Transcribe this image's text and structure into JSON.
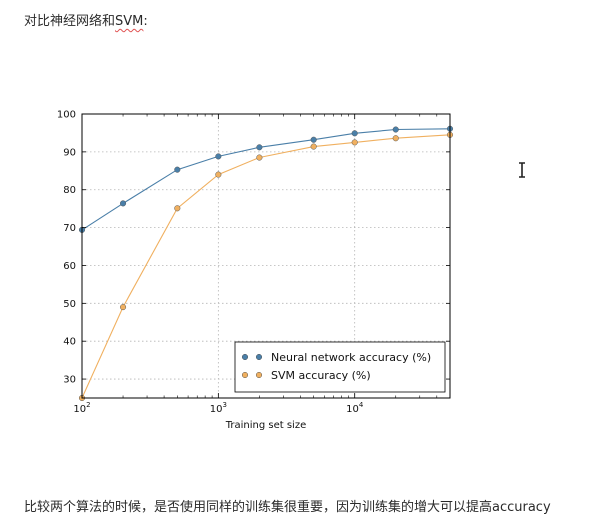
{
  "document": {
    "heading_prefix": "对比神经网络和",
    "heading_svm": "SVM",
    "heading_suffix": ":",
    "paragraph": "比较两个算法的时候，是否使用同样的训练集很重要，因为训练集的增大可以提高accuracy"
  },
  "chart_data": {
    "type": "line",
    "xscale": "log",
    "xlim": [
      100,
      50000
    ],
    "ylim": [
      25,
      100
    ],
    "xlabel": "Training set size",
    "ylabel": "",
    "title": "",
    "grid": true,
    "legend_position": "lower-right",
    "x_ticks": [
      100,
      1000,
      10000
    ],
    "x_tick_labels": [
      {
        "base": "10",
        "exp": "2"
      },
      {
        "base": "10",
        "exp": "3"
      },
      {
        "base": "10",
        "exp": "4"
      }
    ],
    "y_ticks": [
      30,
      40,
      50,
      60,
      70,
      80,
      90,
      100
    ],
    "y_tick_labels": [
      "30",
      "40",
      "50",
      "60",
      "70",
      "80",
      "90",
      "100"
    ],
    "x": [
      100,
      200,
      500,
      1000,
      2000,
      5000,
      10000,
      20000,
      50000
    ],
    "series": [
      {
        "name": "Neural network accuracy (%)",
        "color": "#4a7fa8",
        "values": [
          69.4,
          76.4,
          85.3,
          88.8,
          91.2,
          93.2,
          94.9,
          95.9,
          96.1
        ]
      },
      {
        "name": "SVM accuracy (%)",
        "color": "#f0b060",
        "values": [
          25.0,
          49.0,
          75.1,
          84.0,
          88.5,
          91.4,
          92.5,
          93.6,
          94.5
        ]
      }
    ]
  }
}
